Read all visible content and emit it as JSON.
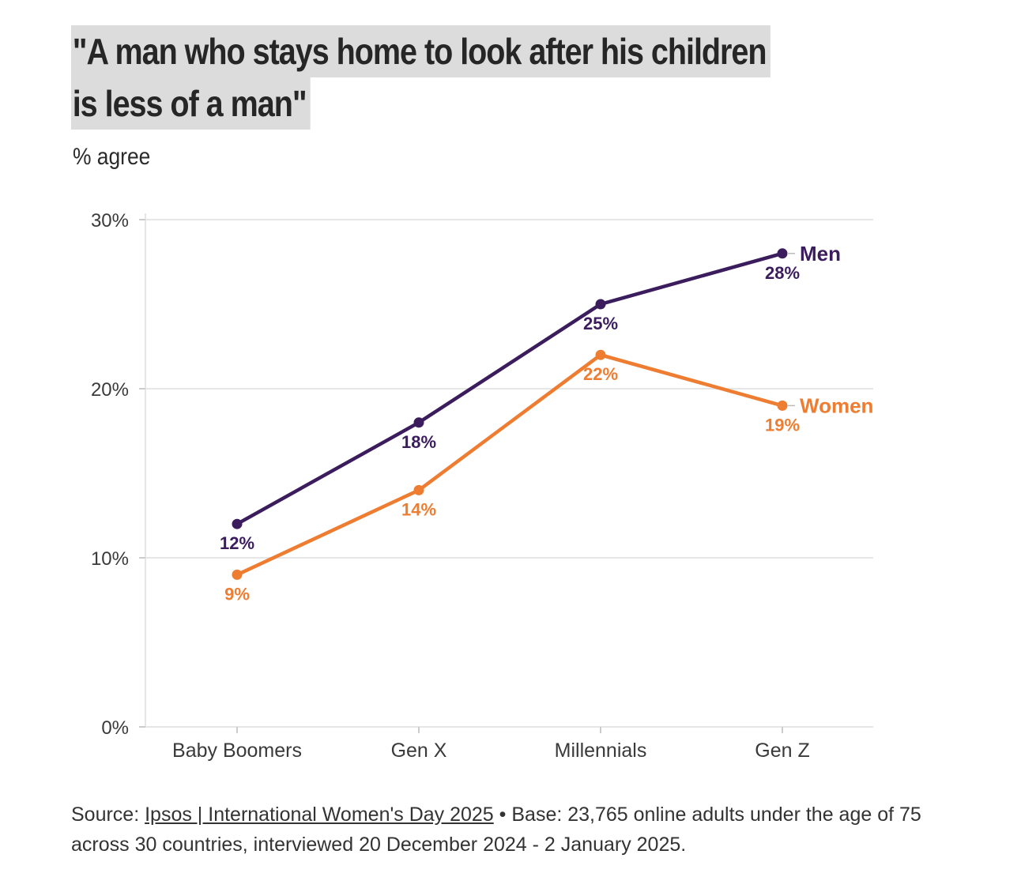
{
  "title_lines": [
    "\"A man who stays home to look after his children",
    "is less of a man\""
  ],
  "subtitle": "% agree",
  "chart_data": {
    "type": "line",
    "title": "\"A man who stays home to look after his children is less of a man\"",
    "subtitle": "% agree",
    "categories": [
      "Baby Boomers",
      "Gen X",
      "Millennials",
      "Gen Z"
    ],
    "y_ticks": [
      "0%",
      "10%",
      "20%",
      "30%"
    ],
    "ylim": [
      0,
      30
    ],
    "grid": true,
    "series": [
      {
        "name": "Men",
        "color": "#3b1d5e",
        "values": [
          12,
          18,
          25,
          28
        ],
        "labels": [
          "12%",
          "18%",
          "25%",
          "28%"
        ]
      },
      {
        "name": "Women",
        "color": "#ee7d31",
        "values": [
          9,
          14,
          22,
          19
        ],
        "labels": [
          "9%",
          "14%",
          "22%",
          "19%"
        ]
      }
    ]
  },
  "source": {
    "prefix": "Source: ",
    "link_text": "Ipsos | International Women's Day 2025",
    "suffix": " • Base: 23,765 online adults under the age of 75 across 30 countries, interviewed 20 December 2024 - 2 January 2025."
  },
  "colors": {
    "title_highlight": "#dcdcdc",
    "grid": "#e6e6e6",
    "axis_text": "#3a3a3a"
  }
}
